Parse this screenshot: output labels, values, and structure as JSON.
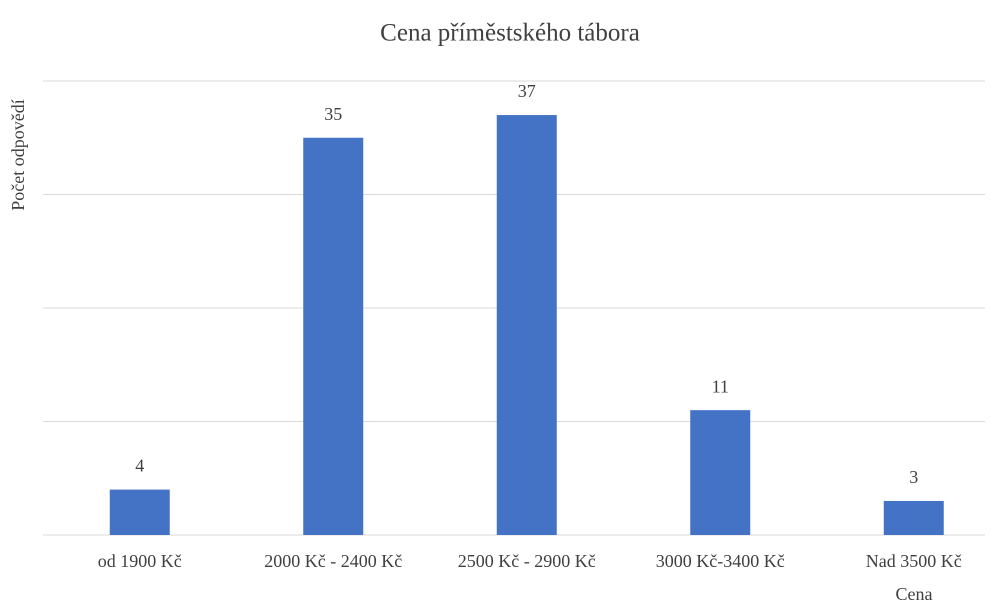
{
  "chart_data": {
    "type": "bar",
    "title": "Cena příměstského tábora",
    "x_label": "Cena",
    "y_label": "Počet odpovědí",
    "categories": [
      "od 1900 Kč",
      "2000 Kč - 2400 Kč",
      "2500 Kč - 2900 Kč",
      "3000 Kč-3400 Kč",
      "Nad 3500 Kč"
    ],
    "values": [
      4,
      35,
      37,
      11,
      3
    ],
    "color": "#4472c4",
    "ylim": [
      0,
      40
    ],
    "yticks": [
      0,
      10,
      20,
      30,
      40
    ],
    "grid": true
  }
}
